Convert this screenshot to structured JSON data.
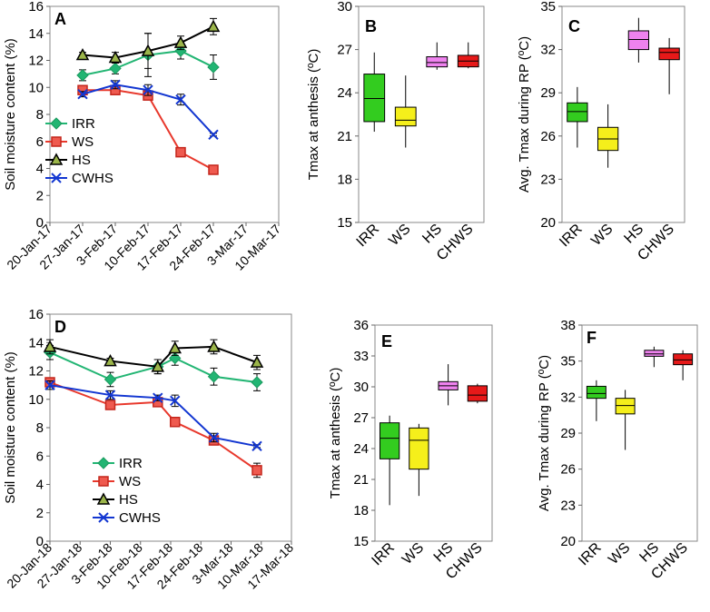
{
  "chart_data": [
    {
      "panel": "A",
      "type": "line",
      "ylabel": "Soil moisture content (%)",
      "ylim": [
        0,
        16
      ],
      "yticks": [
        0,
        2,
        4,
        6,
        8,
        10,
        12,
        14,
        16
      ],
      "x_ticks": [
        "20-Jan-17",
        "27-Jan-17",
        "3-Feb-17",
        "10-Feb-17",
        "17-Feb-17",
        "24-Feb-17",
        "3-Mar-17",
        "10-Mar-17"
      ],
      "x_range": [
        0,
        49
      ],
      "legend": "left-middle",
      "series": [
        {
          "name": "IRR",
          "marker": "diamond",
          "color": "#1a9a5e",
          "x": [
            7,
            14,
            21,
            28,
            35
          ],
          "values": [
            10.9,
            11.4,
            12.4,
            12.7,
            11.5
          ],
          "errors": [
            0.4,
            0.4,
            1.6,
            0.6,
            0.9
          ]
        },
        {
          "name": "WS",
          "marker": "square",
          "color": "#e8382c",
          "x": [
            7,
            14,
            21,
            28,
            35
          ],
          "values": [
            9.8,
            9.8,
            9.4,
            5.2,
            3.9
          ],
          "errors": [
            0.3,
            0.2,
            0.3,
            0.2,
            0.3
          ]
        },
        {
          "name": "HS",
          "marker": "triangle",
          "color": "#000000",
          "x": [
            7,
            14,
            21,
            28,
            35
          ],
          "values": [
            12.4,
            12.2,
            12.7,
            13.3,
            14.5
          ],
          "errors": [
            0.2,
            0.4,
            1.3,
            0.5,
            0.6
          ]
        },
        {
          "name": "CWHS",
          "marker": "x",
          "color": "#1236d1",
          "x": [
            7,
            14,
            21,
            28,
            35
          ],
          "values": [
            9.5,
            10.2,
            9.8,
            9.1,
            6.5
          ],
          "errors": [
            0.2,
            0.3,
            0.4,
            0.4,
            0.1
          ]
        }
      ]
    },
    {
      "panel": "B",
      "type": "box",
      "ylabel": "Tmax at anthesis (ºC)",
      "ylim": [
        15,
        30
      ],
      "yticks": [
        15,
        18,
        21,
        24,
        27,
        30
      ],
      "categories": [
        "IRR",
        "WS",
        "HS",
        "CHWS"
      ],
      "boxes": [
        {
          "min": 21.3,
          "q1": 22.0,
          "median": 23.6,
          "q3": 25.3,
          "max": 26.8,
          "color": "#33cc1f"
        },
        {
          "min": 20.2,
          "q1": 21.7,
          "median": 22.1,
          "q3": 23.0,
          "max": 25.2,
          "color": "#f5ef1b"
        },
        {
          "min": 25.6,
          "q1": 25.8,
          "median": 26.1,
          "q3": 26.5,
          "max": 27.5,
          "color": "#ee82ee"
        },
        {
          "min": 25.7,
          "q1": 25.8,
          "median": 26.2,
          "q3": 26.6,
          "max": 27.5,
          "color": "#e61919"
        }
      ]
    },
    {
      "panel": "C",
      "type": "box",
      "ylabel": "Avg. Tmax during RP (ºC)",
      "ylim": [
        20,
        35
      ],
      "yticks": [
        20,
        23,
        26,
        29,
        32,
        35
      ],
      "categories": [
        "IRR",
        "WS",
        "HS",
        "CHWS"
      ],
      "boxes": [
        {
          "min": 25.2,
          "q1": 27.0,
          "median": 27.7,
          "q3": 28.3,
          "max": 29.4,
          "color": "#33cc1f"
        },
        {
          "min": 23.8,
          "q1": 25.0,
          "median": 25.8,
          "q3": 26.6,
          "max": 28.2,
          "color": "#f5ef1b"
        },
        {
          "min": 31.1,
          "q1": 32.0,
          "median": 32.7,
          "q3": 33.3,
          "max": 34.2,
          "color": "#ee82ee"
        },
        {
          "min": 28.9,
          "q1": 31.3,
          "median": 31.8,
          "q3": 32.1,
          "max": 32.8,
          "color": "#e61919"
        }
      ]
    },
    {
      "panel": "D",
      "type": "line",
      "ylabel": "Soil moisture content (%)",
      "ylim": [
        0,
        16
      ],
      "yticks": [
        0,
        2,
        4,
        6,
        8,
        10,
        12,
        14,
        16
      ],
      "x_ticks": [
        "20-Jan-18",
        "27-Jan-18",
        "3-Feb-18",
        "10-Feb-18",
        "17-Feb-18",
        "24-Feb-18",
        "3-Mar-18",
        "10-Mar-18",
        "17-Mar-18"
      ],
      "x_range": [
        0,
        56
      ],
      "legend": "bottom-left",
      "series": [
        {
          "name": "IRR",
          "marker": "diamond",
          "color": "#1a9a5e",
          "x": [
            0,
            14,
            25,
            29,
            38,
            48
          ],
          "values": [
            13.3,
            11.4,
            12.3,
            12.9,
            11.6,
            11.2
          ],
          "errors": [
            0.5,
            0.5,
            0.5,
            0.5,
            0.6,
            0.6
          ]
        },
        {
          "name": "WS",
          "marker": "square",
          "color": "#e8382c",
          "x": [
            0,
            14,
            25,
            29,
            38,
            48
          ],
          "values": [
            11.2,
            9.6,
            9.8,
            8.4,
            7.1,
            5.0
          ],
          "errors": [
            0.3,
            0.2,
            0.3,
            0.3,
            0.3,
            0.5
          ]
        },
        {
          "name": "HS",
          "marker": "triangle",
          "color": "#000000",
          "x": [
            0,
            14,
            25,
            29,
            38,
            48
          ],
          "values": [
            13.7,
            12.7,
            12.3,
            13.6,
            13.7,
            12.6
          ],
          "errors": [
            0.5,
            0.2,
            0.5,
            0.5,
            0.5,
            0.5
          ]
        },
        {
          "name": "CWHS",
          "marker": "x",
          "color": "#1236d1",
          "x": [
            0,
            14,
            25,
            29,
            38,
            48
          ],
          "values": [
            11.0,
            10.3,
            10.1,
            9.9,
            7.3,
            6.7
          ],
          "errors": [
            0.3,
            0.3,
            0.2,
            0.4,
            0.3,
            0.1
          ]
        }
      ]
    },
    {
      "panel": "E",
      "type": "box",
      "ylabel": "Tmax at anthesis (ºC)",
      "ylim": [
        15,
        36
      ],
      "yticks": [
        15,
        18,
        21,
        24,
        27,
        30,
        33,
        36
      ],
      "categories": [
        "IRR",
        "WS",
        "HS",
        "CHWS"
      ],
      "boxes": [
        {
          "min": 18.5,
          "q1": 23.0,
          "median": 25.0,
          "q3": 26.5,
          "max": 27.2,
          "color": "#33cc1f"
        },
        {
          "min": 19.4,
          "q1": 22.0,
          "median": 24.8,
          "q3": 26.0,
          "max": 26.4,
          "color": "#f5ef1b"
        },
        {
          "min": 28.2,
          "q1": 29.7,
          "median": 30.1,
          "q3": 30.5,
          "max": 32.2,
          "color": "#ee82ee"
        },
        {
          "min": 28.4,
          "q1": 28.6,
          "median": 29.2,
          "q3": 30.1,
          "max": 30.3,
          "color": "#e61919"
        }
      ]
    },
    {
      "panel": "F",
      "type": "box",
      "ylabel": "Avg. Tmax during RP (ºC)",
      "ylim": [
        20,
        38
      ],
      "yticks": [
        20,
        23,
        26,
        29,
        32,
        35,
        38
      ],
      "categories": [
        "IRR",
        "WS",
        "HS",
        "CHWS"
      ],
      "boxes": [
        {
          "min": 30.0,
          "q1": 31.9,
          "median": 32.3,
          "q3": 32.9,
          "max": 33.4,
          "color": "#33cc1f"
        },
        {
          "min": 27.6,
          "q1": 30.6,
          "median": 31.3,
          "q3": 31.9,
          "max": 32.6,
          "color": "#f5ef1b"
        },
        {
          "min": 34.5,
          "q1": 35.4,
          "median": 35.6,
          "q3": 35.9,
          "max": 36.2,
          "color": "#ee82ee"
        },
        {
          "min": 33.4,
          "q1": 34.7,
          "median": 35.1,
          "q3": 35.6,
          "max": 35.9,
          "color": "#e61919"
        }
      ]
    }
  ]
}
